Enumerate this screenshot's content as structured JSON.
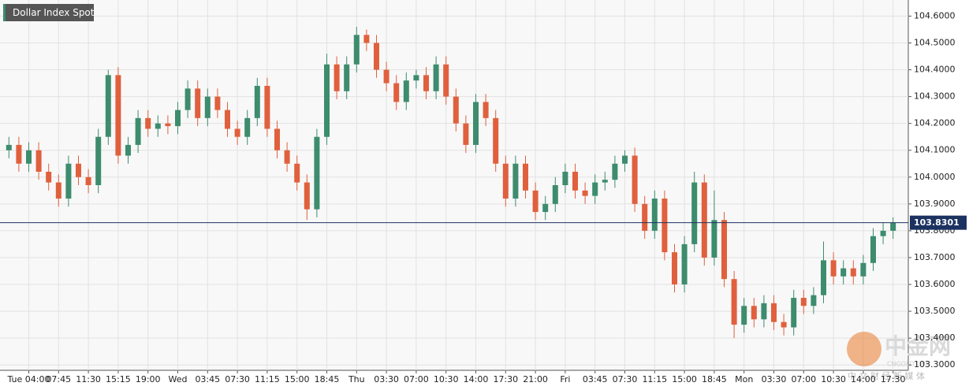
{
  "chart_data": {
    "type": "candlestick",
    "title": "Dollar Index Spot",
    "categories": [
      null,
      null,
      "Tue 04:00",
      null,
      null,
      "07:45",
      null,
      null,
      "11:30",
      null,
      null,
      "15:15",
      null,
      null,
      "19:00",
      null,
      null,
      "Wed",
      null,
      null,
      "03:45",
      null,
      null,
      "07:30",
      null,
      null,
      "11:15",
      null,
      null,
      "15:00",
      null,
      null,
      "18:45",
      null,
      null,
      "Thu",
      null,
      null,
      "03:30",
      null,
      null,
      "07:00",
      null,
      null,
      "10:30",
      null,
      null,
      "14:00",
      null,
      null,
      "17:30",
      null,
      null,
      "21:00",
      null,
      null,
      "Fri",
      null,
      null,
      "03:45",
      null,
      null,
      "07:30",
      null,
      null,
      "11:15",
      null,
      null,
      "15:00",
      null,
      null,
      "18:45",
      null,
      null,
      "Mon",
      null,
      null,
      "03:30",
      null,
      null,
      "07:00",
      null,
      null,
      "10:30",
      null,
      null,
      "14:00",
      null,
      null,
      "17:30"
    ],
    "open": [
      104.1,
      104.12,
      104.05,
      104.1,
      104.02,
      103.98,
      103.92,
      104.05,
      104.0,
      103.97,
      104.15,
      104.38,
      104.08,
      104.12,
      104.22,
      104.18,
      104.2,
      104.19,
      104.25,
      104.33,
      104.22,
      104.3,
      104.25,
      104.18,
      104.15,
      104.22,
      104.34,
      104.18,
      104.1,
      104.05,
      103.98,
      103.88,
      104.15,
      104.42,
      104.32,
      104.42,
      104.53,
      104.5,
      104.4,
      104.35,
      104.28,
      104.36,
      104.38,
      104.32,
      104.42,
      104.3,
      104.2,
      104.12,
      104.28,
      104.22,
      104.05,
      103.92,
      104.05,
      103.95,
      103.87,
      103.9,
      103.97,
      104.02,
      103.95,
      103.93,
      103.98,
      103.99,
      104.05,
      104.08,
      103.9,
      103.8,
      103.92,
      103.72,
      103.6,
      103.75,
      103.98,
      103.7,
      103.84,
      103.62,
      103.45,
      103.52,
      103.47,
      103.53,
      103.46,
      103.44,
      103.55,
      103.52,
      103.56,
      103.69,
      103.63,
      103.66,
      103.63,
      103.68,
      103.78,
      103.8
    ],
    "high": [
      104.15,
      104.15,
      104.13,
      104.13,
      104.05,
      104.01,
      104.08,
      104.08,
      104.03,
      104.18,
      104.4,
      104.41,
      104.15,
      104.25,
      104.25,
      104.23,
      104.23,
      104.28,
      104.36,
      104.36,
      104.33,
      104.33,
      104.28,
      104.21,
      104.25,
      104.37,
      104.37,
      104.21,
      104.13,
      104.08,
      104.01,
      104.18,
      104.46,
      104.45,
      104.45,
      104.56,
      104.55,
      104.53,
      104.43,
      104.38,
      104.39,
      104.4,
      104.41,
      104.45,
      104.45,
      104.33,
      104.23,
      104.31,
      104.31,
      104.25,
      104.08,
      104.08,
      104.08,
      103.98,
      103.93,
      104.0,
      104.05,
      104.05,
      103.98,
      104.01,
      104.02,
      104.08,
      104.1,
      104.11,
      103.93,
      103.95,
      103.95,
      103.75,
      103.78,
      104.02,
      104.01,
      103.95,
      103.87,
      103.65,
      103.55,
      103.55,
      103.56,
      103.56,
      103.49,
      103.58,
      103.58,
      103.59,
      103.76,
      103.72,
      103.69,
      103.69,
      103.71,
      103.81,
      103.83,
      103.85
    ],
    "low": [
      104.07,
      104.02,
      104.02,
      103.99,
      103.95,
      103.89,
      103.89,
      103.97,
      103.94,
      103.94,
      104.12,
      104.05,
      104.05,
      104.09,
      104.15,
      104.15,
      104.16,
      104.16,
      104.22,
      104.19,
      104.19,
      104.22,
      104.15,
      104.12,
      104.12,
      104.19,
      104.15,
      104.07,
      104.02,
      103.95,
      103.84,
      103.85,
      104.12,
      104.29,
      104.29,
      104.39,
      104.47,
      104.37,
      104.32,
      104.25,
      104.25,
      104.33,
      104.29,
      104.29,
      104.27,
      104.17,
      104.09,
      104.09,
      104.19,
      104.02,
      103.89,
      103.89,
      103.92,
      103.84,
      103.84,
      103.87,
      103.94,
      103.92,
      103.9,
      103.9,
      103.95,
      103.96,
      104.02,
      103.87,
      103.77,
      103.77,
      103.69,
      103.57,
      103.57,
      103.72,
      103.67,
      103.67,
      103.59,
      103.4,
      103.42,
      103.44,
      103.44,
      103.43,
      103.41,
      103.41,
      103.49,
      103.49,
      103.53,
      103.6,
      103.6,
      103.6,
      103.6,
      103.65,
      103.75,
      103.77
    ],
    "close": [
      104.12,
      104.05,
      104.1,
      104.02,
      103.98,
      103.92,
      104.05,
      104.0,
      103.97,
      104.15,
      104.38,
      104.08,
      104.12,
      104.22,
      104.18,
      104.2,
      104.19,
      104.25,
      104.33,
      104.22,
      104.3,
      104.25,
      104.18,
      104.15,
      104.22,
      104.34,
      104.18,
      104.1,
      104.05,
      103.98,
      103.88,
      104.15,
      104.42,
      104.32,
      104.42,
      104.53,
      104.5,
      104.4,
      104.35,
      104.28,
      104.36,
      104.38,
      104.32,
      104.42,
      104.3,
      104.2,
      104.12,
      104.28,
      104.22,
      104.05,
      103.92,
      104.05,
      103.95,
      103.87,
      103.9,
      103.97,
      104.02,
      103.95,
      103.93,
      103.98,
      103.99,
      104.05,
      104.08,
      103.9,
      103.8,
      103.92,
      103.72,
      103.6,
      103.75,
      103.98,
      103.7,
      103.84,
      103.62,
      103.45,
      103.52,
      103.47,
      103.53,
      103.46,
      103.44,
      103.55,
      103.52,
      103.56,
      103.69,
      103.63,
      103.66,
      103.63,
      103.68,
      103.78,
      103.8,
      103.83
    ],
    "up_color": "#3d8c6e",
    "down_color": "#e0603d",
    "ylim": [
      103.28,
      104.66
    ],
    "yticks": [
      {
        "value": 103.3,
        "label": "103.3000"
      },
      {
        "value": 103.4,
        "label": "103.4000"
      },
      {
        "value": 103.5,
        "label": "103.5000"
      },
      {
        "value": 103.6,
        "label": "103.6000"
      },
      {
        "value": 103.7,
        "label": "103.7000"
      },
      {
        "value": 103.8,
        "label": "103.8000"
      },
      {
        "value": 103.9,
        "label": "103.9000"
      },
      {
        "value": 104.0,
        "label": "104.0000"
      },
      {
        "value": 104.1,
        "label": "104.1000"
      },
      {
        "value": 104.2,
        "label": "104.2000"
      },
      {
        "value": 104.3,
        "label": "104.3000"
      },
      {
        "value": 104.4,
        "label": "104.4000"
      },
      {
        "value": 104.5,
        "label": "104.5000"
      },
      {
        "value": 104.6,
        "label": "104.6000"
      }
    ],
    "grid": true,
    "last_price": {
      "value": 103.8301,
      "label": "103.8301"
    },
    "watermark": {
      "logo": "中金网",
      "site": "CNGOLD.ORG",
      "slogan": "中 文 财 经 新 媒 体"
    }
  }
}
